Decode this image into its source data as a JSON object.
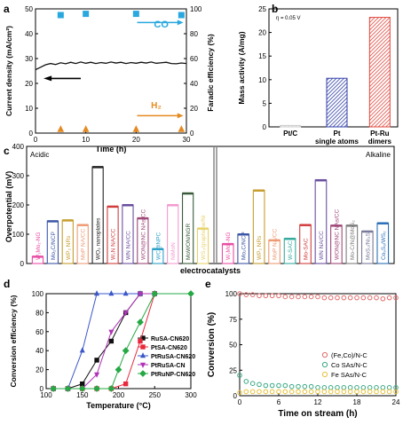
{
  "panels": {
    "a": "a",
    "b": "b",
    "c": "c",
    "d": "d",
    "e": "e"
  },
  "chart_data": [
    {
      "id": "a",
      "type": "line",
      "xlabel": "Time (h)",
      "ylabel": "Current density (mA/cm²)",
      "ylabel2": "Faradic efficiency (%)",
      "xlim": [
        0,
        30
      ],
      "ylim": [
        0,
        50
      ],
      "ylim2": [
        0,
        100
      ],
      "xticks": [
        0,
        10,
        20,
        30
      ],
      "yticks": [
        0,
        10,
        20,
        30,
        40,
        50
      ],
      "yticks2": [
        0,
        20,
        40,
        60,
        80,
        100
      ],
      "current_density": {
        "x": [
          0,
          1,
          2,
          3,
          4,
          5,
          6,
          7,
          8,
          9,
          10,
          11,
          12,
          13,
          14,
          15,
          16,
          17,
          18,
          19,
          20,
          21,
          22,
          23,
          24,
          25,
          26,
          27,
          28,
          29,
          30
        ],
        "y": [
          25.5,
          26.5,
          27.5,
          28.0,
          27.6,
          28.3,
          27.9,
          28.5,
          28.0,
          28.6,
          28.1,
          28.5,
          28.0,
          28.4,
          28.1,
          28.6,
          28.2,
          28.5,
          28.0,
          28.4,
          28.1,
          28.5,
          28.2,
          28.6,
          28.1,
          28.3,
          28.5,
          28.0,
          27.9,
          28.2,
          28.0
        ]
      },
      "fe_co": {
        "name": "CO",
        "x": [
          5,
          10,
          20,
          29
        ],
        "y": [
          95,
          96,
          96,
          95
        ],
        "color": "#29a8df"
      },
      "fe_h2": {
        "name": "H₂",
        "x": [
          5,
          10,
          20,
          29
        ],
        "y": [
          3,
          3,
          3,
          3
        ],
        "color": "#e58a22"
      }
    },
    {
      "id": "b",
      "type": "bar",
      "annotation": "η = 0.05 V",
      "ylabel": "Mass activity (A/mg)",
      "ylim": [
        0,
        25
      ],
      "yticks": [
        0,
        5,
        10,
        15,
        20,
        25
      ],
      "categories": [
        "Pt/C",
        "Pt single atoms",
        "Pt-Ru dimers"
      ],
      "category_lines": [
        [
          "Pt/C"
        ],
        [
          "Pt",
          "single atoms"
        ],
        [
          "Pt-Ru",
          "dimers"
        ]
      ],
      "values": [
        0.3,
        10.3,
        23.2
      ],
      "colors": [
        "#cccccc",
        "#3140a8",
        "#e0473c"
      ]
    },
    {
      "id": "c",
      "type": "bar",
      "ylabel": "Overpotential (mV)",
      "xlabel": "electrocatalysts",
      "ylim": [
        0,
        400
      ],
      "yticks": [
        0,
        100,
        200,
        300,
        400
      ],
      "regions": [
        "Acidic",
        "Alkaline"
      ],
      "acidic": [
        {
          "label": "W₁Mo₁-NG",
          "value": 24,
          "color": "#e94fa5"
        },
        {
          "label": "Mo₂C/NCP",
          "value": 145,
          "color": "#3d56a6"
        },
        {
          "label": "WP₂ NRs",
          "value": 148,
          "color": "#c69d2e"
        },
        {
          "label": "MoP NA/CC",
          "value": 132,
          "color": "#ee9b74"
        },
        {
          "label": "WO₂ nanoplates",
          "value": 330,
          "color": "#222222"
        },
        {
          "label": "W₂N NA/CC",
          "value": 195,
          "color": "#d23c3c"
        },
        {
          "label": "WN NA/CC",
          "value": 200,
          "color": "#6a4fa0"
        },
        {
          "label": "WON@NC NAs/CC",
          "value": 155,
          "color": "#a04878"
        },
        {
          "label": "WC@NPC",
          "value": 50,
          "color": "#2fa0c8"
        },
        {
          "label": "NiMoN",
          "value": 200,
          "color": "#f49ad0"
        },
        {
          "label": "MoWON/NGR",
          "value": 240,
          "color": "#3a5b3a"
        },
        {
          "label": "WS₂/graphene/Ni",
          "value": 120,
          "color": "#e7d36b"
        }
      ],
      "alkaline": [
        {
          "label": "W₁Mo₁-NG",
          "value": 67,
          "color": "#e94fa5"
        },
        {
          "label": "Mo₂C/NCP",
          "value": 100,
          "color": "#3d56a6"
        },
        {
          "label": "WP₂ NRs",
          "value": 250,
          "color": "#c69d2e"
        },
        {
          "label": "MoP NA/CC",
          "value": 80,
          "color": "#ee9b74"
        },
        {
          "label": "W-SAC",
          "value": 85,
          "color": "#37aa9e"
        },
        {
          "label": "Mo-SAC",
          "value": 132,
          "color": "#d23c3c"
        },
        {
          "label": "WN NA/CC",
          "value": 285,
          "color": "#6a4fa0"
        },
        {
          "label": "WON@NC NAs/CC",
          "value": 130,
          "color": "#a04878"
        },
        {
          "label": "Mo-C/N@MoS₂",
          "value": 130,
          "color": "#7e7e7e"
        },
        {
          "label": "MoS₂/Ni₃S₂",
          "value": 110,
          "color": "#7a7a9a"
        },
        {
          "label": "Co₉S₈/WS₂",
          "value": 138,
          "color": "#2b6fb8"
        }
      ]
    },
    {
      "id": "d",
      "type": "line",
      "xlabel": "Temperature (°C)",
      "ylabel": "Conversion efficiency (%)",
      "xlim": [
        100,
        300
      ],
      "ylim": [
        0,
        100
      ],
      "xticks": [
        100,
        150,
        200,
        250,
        300
      ],
      "yticks": [
        0,
        20,
        40,
        60,
        80,
        100
      ],
      "series": [
        {
          "name": "RuSA-CN620",
          "color": "#111111",
          "marker": "square",
          "x": [
            110,
            130,
            150,
            170,
            190,
            210,
            230,
            250
          ],
          "y": [
            0,
            0,
            5,
            30,
            50,
            80,
            100,
            100
          ]
        },
        {
          "name": "PtSA-CN620",
          "color": "#e8283c",
          "marker": "square",
          "x": [
            110,
            130,
            150,
            170,
            190,
            210,
            230,
            250
          ],
          "y": [
            0,
            0,
            0,
            0,
            0,
            5,
            50,
            100
          ]
        },
        {
          "name": "PtRuSA-CN620",
          "color": "#3b57c8",
          "marker": "triangle",
          "x": [
            110,
            130,
            150,
            170,
            190,
            210,
            230,
            250
          ],
          "y": [
            0,
            0,
            40,
            100,
            100,
            100,
            100,
            100
          ]
        },
        {
          "name": "PtRuSA-CN",
          "color": "#b033b8",
          "marker": "triangle-down",
          "x": [
            110,
            130,
            150,
            170,
            190,
            210,
            230,
            250
          ],
          "y": [
            0,
            0,
            0,
            15,
            60,
            80,
            100,
            100
          ]
        },
        {
          "name": "PtRuNP-CN620",
          "color": "#26a845",
          "marker": "diamond",
          "x": [
            110,
            130,
            150,
            170,
            190,
            200,
            210,
            230,
            250,
            300
          ],
          "y": [
            0,
            0,
            0,
            0,
            0,
            20,
            40,
            70,
            100,
            100
          ]
        }
      ]
    },
    {
      "id": "e",
      "type": "scatter",
      "xlabel": "Time on stream (h)",
      "ylabel": "Conversion (%)",
      "xlim": [
        0,
        24
      ],
      "ylim": [
        0,
        100
      ],
      "xticks": [
        0,
        6,
        12,
        18,
        24
      ],
      "yticks": [
        0,
        25,
        50,
        75,
        100
      ],
      "series": [
        {
          "name": "(Fe,Co)/N-C",
          "color": "#e26a6a",
          "x": [
            0,
            1,
            2,
            3,
            4,
            5,
            6,
            7,
            8,
            9,
            10,
            11,
            12,
            13,
            14,
            15,
            16,
            17,
            18,
            19,
            20,
            21,
            22,
            23,
            24
          ],
          "y": [
            100,
            99,
            99,
            98,
            98,
            98,
            98,
            97,
            97,
            97,
            97,
            97,
            97,
            96,
            96,
            96,
            96,
            96,
            96,
            96,
            96,
            96,
            95,
            96,
            96
          ]
        },
        {
          "name": "Co SAs/N-C",
          "color": "#3aa886",
          "x": [
            0,
            1,
            2,
            3,
            4,
            5,
            6,
            7,
            8,
            9,
            10,
            11,
            12,
            13,
            14,
            15,
            16,
            17,
            18,
            19,
            20,
            21,
            22,
            23,
            24
          ],
          "y": [
            20,
            14,
            12,
            11,
            10,
            10,
            10,
            10,
            9,
            9,
            9,
            9,
            8,
            8,
            8,
            8,
            8,
            8,
            8,
            8,
            8,
            8,
            8,
            8,
            8
          ]
        },
        {
          "name": "Fe SAs/N-C",
          "color": "#e8c23c",
          "x": [
            0,
            1,
            2,
            3,
            4,
            5,
            6,
            7,
            8,
            9,
            10,
            11,
            12,
            13,
            14,
            15,
            16,
            17,
            18,
            19,
            20,
            21,
            22,
            23,
            24
          ],
          "y": [
            3,
            4,
            4,
            4,
            4,
            4,
            4,
            4,
            4,
            4,
            4,
            4,
            4,
            4,
            4,
            4,
            4,
            4,
            4,
            4,
            4,
            4,
            4,
            4,
            4
          ]
        }
      ]
    }
  ]
}
